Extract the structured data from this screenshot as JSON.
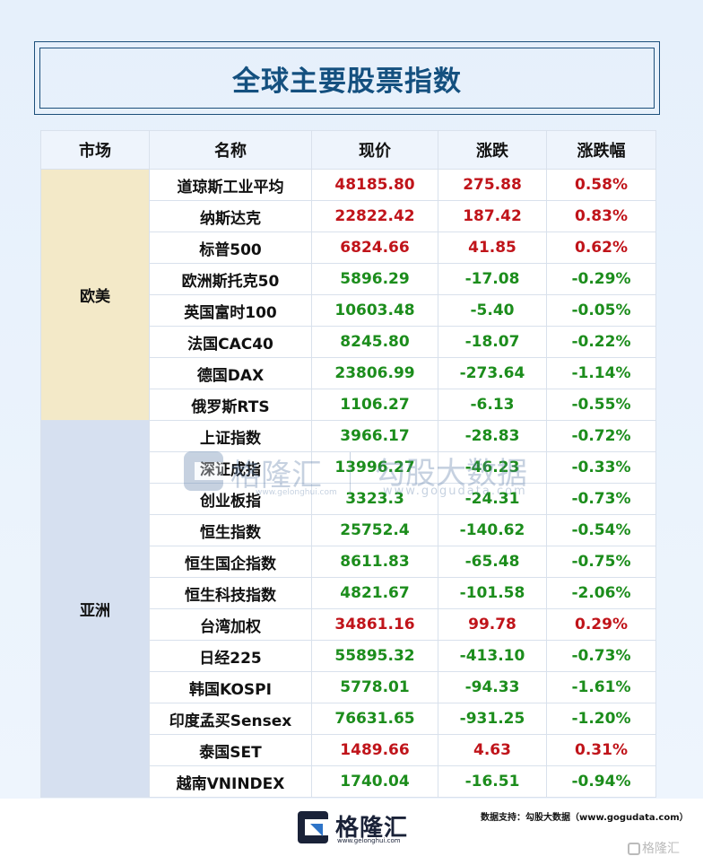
{
  "title": "全球主要股票指数",
  "colors": {
    "up": "#c0141a",
    "down": "#1c8d1c",
    "title": "#14507f",
    "eu_bg": "#f3e9c8",
    "asia_bg": "#d6e0f0"
  },
  "table": {
    "headers": [
      "市场",
      "名称",
      "现价",
      "涨跌",
      "涨跌幅"
    ],
    "groups": [
      {
        "market": "欧美",
        "rows": [
          {
            "name": "道琼斯工业平均",
            "price": "48185.80",
            "change": "275.88",
            "pct": "0.58%",
            "dir": "up"
          },
          {
            "name": "纳斯达克",
            "price": "22822.42",
            "change": "187.42",
            "pct": "0.83%",
            "dir": "up"
          },
          {
            "name": "标普500",
            "price": "6824.66",
            "change": "41.85",
            "pct": "0.62%",
            "dir": "up"
          },
          {
            "name": "欧洲斯托克50",
            "price": "5896.29",
            "change": "-17.08",
            "pct": "-0.29%",
            "dir": "down"
          },
          {
            "name": "英国富时100",
            "price": "10603.48",
            "change": "-5.40",
            "pct": "-0.05%",
            "dir": "down"
          },
          {
            "name": "法国CAC40",
            "price": "8245.80",
            "change": "-18.07",
            "pct": "-0.22%",
            "dir": "down"
          },
          {
            "name": "德国DAX",
            "price": "23806.99",
            "change": "-273.64",
            "pct": "-1.14%",
            "dir": "down"
          },
          {
            "name": "俄罗斯RTS",
            "price": "1106.27",
            "change": "-6.13",
            "pct": "-0.55%",
            "dir": "down"
          }
        ]
      },
      {
        "market": "亚洲",
        "rows": [
          {
            "name": "上证指数",
            "price": "3966.17",
            "change": "-28.83",
            "pct": "-0.72%",
            "dir": "down"
          },
          {
            "name": "深证成指",
            "price": "13996.27",
            "change": "-46.23",
            "pct": "-0.33%",
            "dir": "down"
          },
          {
            "name": "创业板指",
            "price": "3323.3",
            "change": "-24.31",
            "pct": "-0.73%",
            "dir": "down"
          },
          {
            "name": "恒生指数",
            "price": "25752.4",
            "change": "-140.62",
            "pct": "-0.54%",
            "dir": "down"
          },
          {
            "name": "恒生国企指数",
            "price": "8611.83",
            "change": "-65.48",
            "pct": "-0.75%",
            "dir": "down"
          },
          {
            "name": "恒生科技指数",
            "price": "4821.67",
            "change": "-101.58",
            "pct": "-2.06%",
            "dir": "down"
          },
          {
            "name": "台湾加权",
            "price": "34861.16",
            "change": "99.78",
            "pct": "0.29%",
            "dir": "up"
          },
          {
            "name": "日经225",
            "price": "55895.32",
            "change": "-413.10",
            "pct": "-0.73%",
            "dir": "down"
          },
          {
            "name": "韩国KOSPI",
            "price": "5778.01",
            "change": "-94.33",
            "pct": "-1.61%",
            "dir": "down"
          },
          {
            "name": "印度孟买Sensex",
            "price": "76631.65",
            "change": "-931.25",
            "pct": "-1.20%",
            "dir": "down"
          },
          {
            "name": "泰国SET",
            "price": "1489.66",
            "change": "4.63",
            "pct": "0.31%",
            "dir": "up"
          },
          {
            "name": "越南VNINDEX",
            "price": "1740.04",
            "change": "-16.51",
            "pct": "-0.94%",
            "dir": "down"
          }
        ]
      }
    ]
  },
  "watermark": {
    "brand": "格隆汇",
    "brand_url": "www.gelonghui.com",
    "data_brand": "勾股大数据",
    "data_url": "www.gogudata.com"
  },
  "footer": {
    "logo_text": "格隆汇",
    "logo_url": "www.gelonghui.com",
    "source": "数据支持：勾股大数据（www.gogudata.com）",
    "corner_mark": "格隆汇"
  }
}
